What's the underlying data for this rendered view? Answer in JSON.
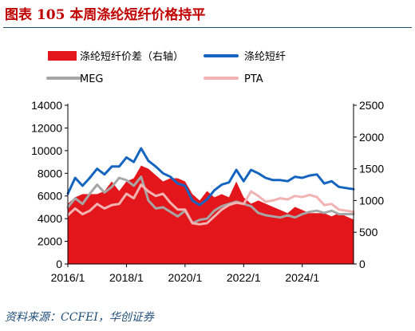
{
  "header": {
    "figure_title": "图表 105    本周涤纶短纤价格持平"
  },
  "footer": {
    "source": "资料来源：CCFEI，华创证券"
  },
  "colors": {
    "spread": "#e3161c",
    "staple": "#1565c0",
    "meg": "#a6a6a6",
    "pta": "#f2b3b3",
    "title": "#c00000",
    "rule": "#1f4e79"
  },
  "chart_data": {
    "type": "line",
    "legend": [
      {
        "name": "涤纶短纤价差（右轴）",
        "style": "area"
      },
      {
        "name": "涤纶短纤",
        "style": "line"
      },
      {
        "name": "MEG",
        "style": "line"
      },
      {
        "name": "PTA",
        "style": "line"
      }
    ],
    "x_ticks": [
      "2016/1",
      "2018/1",
      "2020/1",
      "2022/1",
      "2024/1"
    ],
    "xlim": [
      "2016/1",
      "2025/10"
    ],
    "y_left": {
      "min": 0,
      "max": 14000,
      "ticks": [
        0,
        2000,
        4000,
        6000,
        8000,
        10000,
        12000,
        14000
      ]
    },
    "y_right": {
      "min": 0,
      "max": 2500,
      "ticks": [
        0,
        500,
        1000,
        1500,
        2000,
        2500
      ]
    },
    "x": [
      "2016/1",
      "2016/4",
      "2016/7",
      "2016/10",
      "2017/1",
      "2017/4",
      "2017/7",
      "2017/10",
      "2018/1",
      "2018/4",
      "2018/7",
      "2018/10",
      "2019/1",
      "2019/4",
      "2019/7",
      "2019/10",
      "2020/1",
      "2020/4",
      "2020/7",
      "2020/10",
      "2021/1",
      "2021/4",
      "2021/7",
      "2021/10",
      "2022/1",
      "2022/4",
      "2022/7",
      "2022/10",
      "2023/1",
      "2023/4",
      "2023/7",
      "2023/10",
      "2024/1",
      "2024/4",
      "2024/7",
      "2024/10",
      "2025/1",
      "2025/4",
      "2025/7",
      "2025/10"
    ],
    "series": [
      {
        "name": "涤纶短纤",
        "axis": "left",
        "values": [
          6200,
          7600,
          6900,
          7600,
          8400,
          7900,
          8600,
          8600,
          9400,
          9000,
          10200,
          9100,
          8600,
          8000,
          7700,
          7100,
          6900,
          5600,
          5200,
          5700,
          6500,
          7000,
          7200,
          8300,
          7300,
          8300,
          8000,
          7600,
          7400,
          7400,
          7300,
          7700,
          7600,
          7800,
          7900,
          7100,
          7300,
          6800,
          6700,
          6600
        ]
      },
      {
        "name": "MEG",
        "axis": "left",
        "values": [
          5000,
          5800,
          5300,
          6200,
          7000,
          6300,
          6800,
          7600,
          7400,
          6900,
          7700,
          5600,
          4900,
          5000,
          4600,
          4200,
          4700,
          3600,
          3900,
          4000,
          4700,
          5100,
          5300,
          5500,
          5300,
          5100,
          4500,
          4300,
          4200,
          4100,
          4300,
          4100,
          4400,
          4600,
          4700,
          4500,
          4700,
          4400,
          4400,
          4400
        ]
      },
      {
        "name": "PTA",
        "axis": "left",
        "values": [
          4300,
          4900,
          4400,
          4700,
          5300,
          4900,
          5200,
          5300,
          6200,
          5800,
          7000,
          6400,
          6000,
          6200,
          5400,
          4800,
          4800,
          3600,
          3500,
          3600,
          4200,
          4800,
          5200,
          5400,
          5300,
          6400,
          6000,
          5500,
          5600,
          5800,
          5700,
          6000,
          5900,
          6100,
          5900,
          5200,
          5300,
          4800,
          4700,
          4600
        ]
      },
      {
        "name": "涤纶短纤价差（右轴）",
        "axis": "right",
        "style": "area",
        "values": [
          950,
          1050,
          1100,
          1100,
          1100,
          1150,
          1300,
          1150,
          1300,
          1350,
          1550,
          1500,
          1400,
          1300,
          1350,
          1350,
          1300,
          1100,
          1000,
          1150,
          1050,
          1100,
          1050,
          1300,
          1050,
          950,
          1000,
          950,
          900,
          850,
          800,
          900,
          850,
          800,
          800,
          800,
          750,
          800,
          750,
          700
        ]
      }
    ]
  }
}
